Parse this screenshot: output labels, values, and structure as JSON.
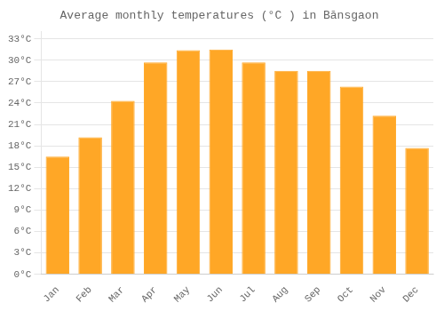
{
  "chart_data": {
    "type": "bar",
    "title": "Average monthly temperatures (°C ) in Bānsgaon",
    "categories": [
      "Jan",
      "Feb",
      "Mar",
      "Apr",
      "May",
      "Jun",
      "Jul",
      "Aug",
      "Sep",
      "Oct",
      "Nov",
      "Dec"
    ],
    "values": [
      16.5,
      19.2,
      24.3,
      29.7,
      31.4,
      31.5,
      29.7,
      28.5,
      28.5,
      26.3,
      22.2,
      17.7
    ],
    "color": "#FFA726",
    "ylim": [
      0,
      34
    ],
    "yticks": [
      {
        "value": 0,
        "label": "0°C"
      },
      {
        "value": 3,
        "label": "3°C"
      },
      {
        "value": 6,
        "label": "6°C"
      },
      {
        "value": 9,
        "label": "9°C"
      },
      {
        "value": 12,
        "label": "12°C"
      },
      {
        "value": 15,
        "label": "15°C"
      },
      {
        "value": 18,
        "label": "18°C"
      },
      {
        "value": 21,
        "label": "21°C"
      },
      {
        "value": 24,
        "label": "24°C"
      },
      {
        "value": 27,
        "label": "27°C"
      },
      {
        "value": 30,
        "label": "30°C"
      },
      {
        "value": 33,
        "label": "33°C"
      }
    ],
    "grid": true
  }
}
